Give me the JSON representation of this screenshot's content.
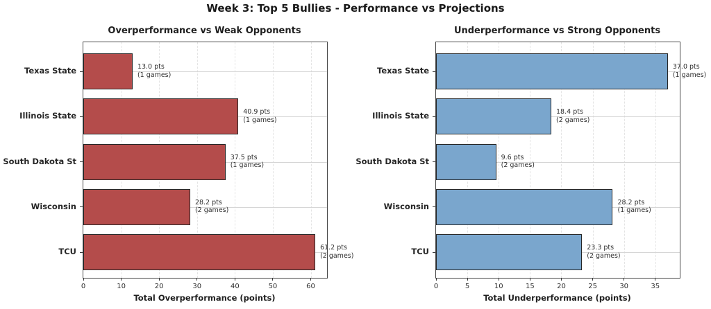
{
  "page_title": "Week 3: Top 5 Bullies - Performance vs Projections",
  "colors": {
    "overperformance_bar": "#b44c4b",
    "underperformance_bar": "#7aa6cd",
    "bar_edge": "#262626",
    "title_text": "#1a1a1a",
    "background": "#ffffff"
  },
  "chart_data": [
    {
      "type": "bar",
      "orientation": "horizontal",
      "title": "Overperformance vs Weak Opponents",
      "xlabel": "Total Overperformance (points)",
      "ylabel": "",
      "categories": [
        "Texas State",
        "Illinois State",
        "South Dakota St",
        "Wisconsin",
        "TCU"
      ],
      "values": [
        13.0,
        40.9,
        37.5,
        28.2,
        61.2
      ],
      "games": [
        1,
        1,
        1,
        2,
        2
      ],
      "bar_labels": [
        {
          "line1": "13.0 pts",
          "line2": "(1 games)"
        },
        {
          "line1": "40.9 pts",
          "line2": "(1 games)"
        },
        {
          "line1": "37.5 pts",
          "line2": "(1 games)"
        },
        {
          "line1": "28.2 pts",
          "line2": "(2 games)"
        },
        {
          "line1": "61.2 pts",
          "line2": "(2 games)"
        }
      ],
      "xticks": [
        0,
        10,
        20,
        30,
        40,
        50,
        60
      ],
      "xlim": [
        0,
        64.3
      ],
      "bar_color": "#b44c4b",
      "grid": true,
      "legend": null
    },
    {
      "type": "bar",
      "orientation": "horizontal",
      "title": "Underperformance vs Strong Opponents",
      "xlabel": "Total Underperformance (points)",
      "ylabel": "",
      "categories": [
        "Texas State",
        "Illinois State",
        "South Dakota St",
        "Wisconsin",
        "TCU"
      ],
      "values": [
        37.0,
        18.4,
        9.6,
        28.2,
        23.3
      ],
      "games": [
        1,
        2,
        2,
        1,
        2
      ],
      "bar_labels": [
        {
          "line1": "37.0 pts",
          "line2": "(1 games)"
        },
        {
          "line1": "18.4 pts",
          "line2": "(2 games)"
        },
        {
          "line1": "9.6 pts",
          "line2": "(2 games)"
        },
        {
          "line1": "28.2 pts",
          "line2": "(1 games)"
        },
        {
          "line1": "23.3 pts",
          "line2": "(2 games)"
        }
      ],
      "xticks": [
        0,
        5,
        10,
        15,
        20,
        25,
        30,
        35
      ],
      "xlim": [
        0,
        38.9
      ],
      "bar_color": "#7aa6cd",
      "grid": true,
      "legend": null
    }
  ]
}
